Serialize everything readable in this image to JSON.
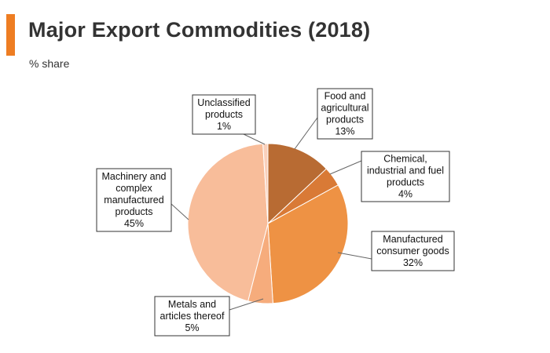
{
  "header": {
    "title": "Major Export Commodities (2018)",
    "subtitle": "% share"
  },
  "colors": {
    "accent": "#ee7d22",
    "title_text": "#333333"
  },
  "chart_data": {
    "type": "pie",
    "title": "Major Export Commodities (2018)",
    "subtitle": "% share",
    "start_angle_deg": 0,
    "direction": "clockwise",
    "slices": [
      {
        "label_lines": [
          "Food and",
          "agricultural",
          "products",
          "13%"
        ],
        "value": 13,
        "color": "#b86b33"
      },
      {
        "label_lines": [
          "Chemical,",
          "industrial and fuel",
          "products",
          "4%"
        ],
        "value": 4,
        "color": "#d97a36"
      },
      {
        "label_lines": [
          "Manufactured",
          "consumer goods",
          "32%"
        ],
        "value": 32,
        "color": "#ee9244"
      },
      {
        "label_lines": [
          "Metals and",
          "articles thereof",
          "5%"
        ],
        "value": 5,
        "color": "#f6ac7c"
      },
      {
        "label_lines": [
          "Machinery and",
          "complex",
          "manufactured",
          "products",
          "45%"
        ],
        "value": 45,
        "color": "#f8bd9a"
      },
      {
        "label_lines": [
          "Unclassified",
          "products",
          "1%"
        ],
        "value": 1,
        "color": "#fad0bb"
      }
    ],
    "legend": "none",
    "labels": "callouts"
  }
}
